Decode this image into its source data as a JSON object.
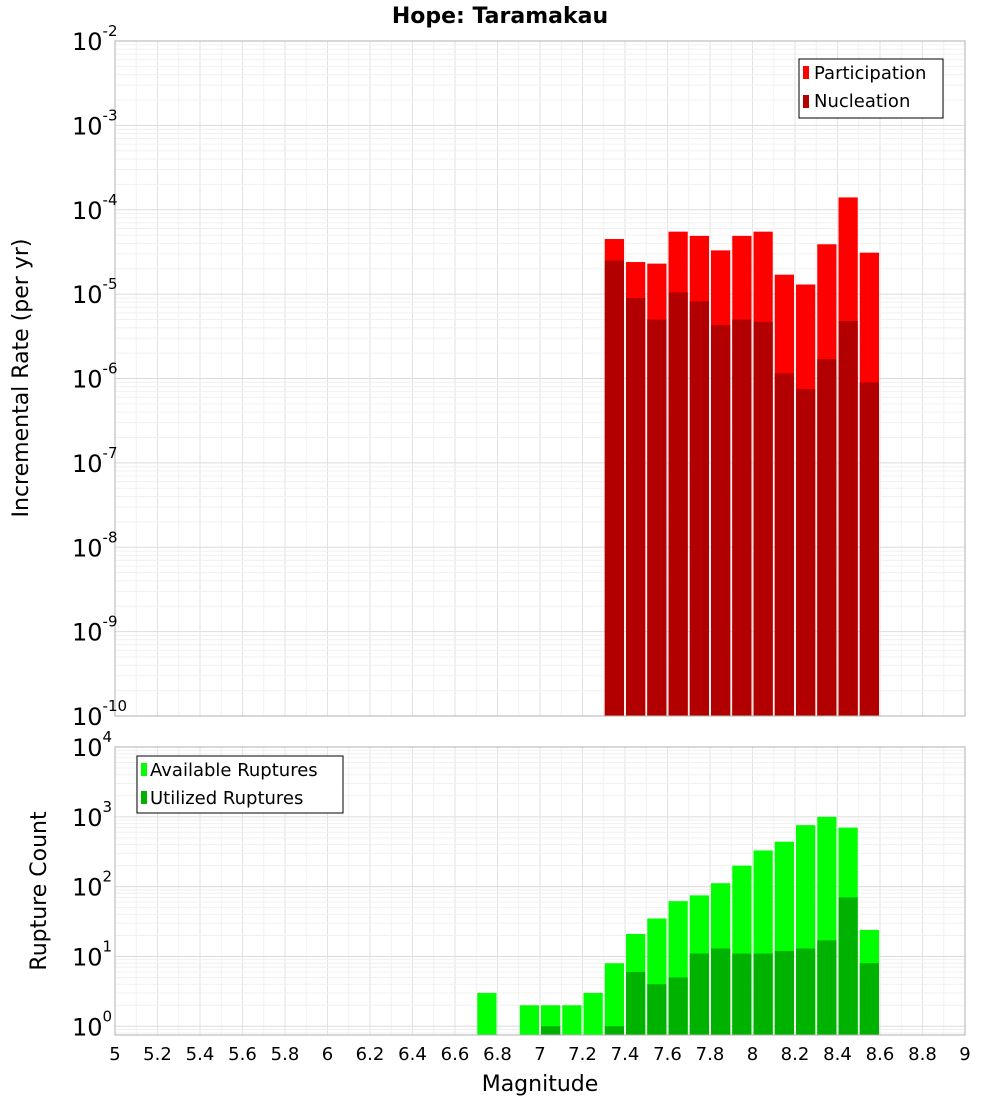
{
  "chart_data": [
    {
      "type": "bar",
      "title": "Hope: Taramakau",
      "ylabel": "Incremental Rate (per yr)",
      "y_scale": "log",
      "ylim": [
        1e-10,
        0.01
      ],
      "xlim": [
        5,
        9
      ],
      "bar_width": 0.1,
      "legend_position": "top-right",
      "y_tick_labels": [
        {
          "base": "10",
          "exp": "-10"
        },
        {
          "base": "10",
          "exp": "-9"
        },
        {
          "base": "10",
          "exp": "-8"
        },
        {
          "base": "10",
          "exp": "-7"
        },
        {
          "base": "10",
          "exp": "-6"
        },
        {
          "base": "10",
          "exp": "-5"
        },
        {
          "base": "10",
          "exp": "-4"
        },
        {
          "base": "10",
          "exp": "-3"
        },
        {
          "base": "10",
          "exp": "-2"
        }
      ],
      "x": [
        7.35,
        7.45,
        7.55,
        7.65,
        7.75,
        7.85,
        7.95,
        8.05,
        8.15,
        8.25,
        8.35,
        8.45,
        8.55
      ],
      "series": [
        {
          "name": "Participation",
          "color": "#ff0000",
          "values": [
            4.5e-05,
            2.4e-05,
            2.3e-05,
            5.5e-05,
            4.9e-05,
            3.3e-05,
            4.9e-05,
            5.5e-05,
            1.7e-05,
            1.3e-05,
            3.9e-05,
            0.00014,
            3.1e-05
          ]
        },
        {
          "name": "Nucleation",
          "color": "#b20000",
          "values": [
            2.5e-05,
            9e-06,
            5e-06,
            1.05e-05,
            8.2e-06,
            4.3e-06,
            5e-06,
            4.7e-06,
            1.15e-06,
            7.5e-07,
            1.7e-06,
            4.8e-06,
            9e-07
          ]
        }
      ]
    },
    {
      "type": "bar",
      "xlabel": "Magnitude",
      "ylabel": "Rupture Count",
      "y_scale": "log",
      "ylim": [
        0.75,
        10000
      ],
      "xlim": [
        5,
        9
      ],
      "bar_width": 0.1,
      "legend_position": "top-left",
      "y_tick_labels": [
        {
          "base": "10",
          "exp": "0"
        },
        {
          "base": "10",
          "exp": "1"
        },
        {
          "base": "10",
          "exp": "2"
        },
        {
          "base": "10",
          "exp": "3"
        },
        {
          "base": "10",
          "exp": "4"
        }
      ],
      "x_tick_labels": [
        "5",
        "5.2",
        "5.4",
        "5.6",
        "5.8",
        "6",
        "6.2",
        "6.4",
        "6.6",
        "6.8",
        "7",
        "7.2",
        "7.4",
        "7.6",
        "7.8",
        "8",
        "8.2",
        "8.4",
        "8.6",
        "8.8",
        "9"
      ],
      "x_ticks": [
        5,
        5.2,
        5.4,
        5.6,
        5.8,
        6,
        6.2,
        6.4,
        6.6,
        6.8,
        7,
        7.2,
        7.4,
        7.6,
        7.8,
        8,
        8.2,
        8.4,
        8.6,
        8.8,
        9
      ],
      "x": [
        6.75,
        6.95,
        7.05,
        7.15,
        7.25,
        7.35,
        7.45,
        7.55,
        7.65,
        7.75,
        7.85,
        7.95,
        8.05,
        8.15,
        8.25,
        8.35,
        8.45,
        8.55
      ],
      "series": [
        {
          "name": "Available Ruptures",
          "color": "#00ff00",
          "values": [
            3,
            2,
            2,
            2,
            3,
            8,
            21,
            35,
            62,
            75,
            112,
            200,
            330,
            440,
            760,
            1000,
            700,
            24
          ]
        },
        {
          "name": "Utilized Ruptures",
          "color": "#00b200",
          "values": [
            0,
            0,
            1,
            0,
            0,
            1,
            6,
            4,
            5,
            11,
            13,
            11,
            11,
            12,
            13,
            17,
            70,
            8
          ]
        }
      ]
    }
  ]
}
